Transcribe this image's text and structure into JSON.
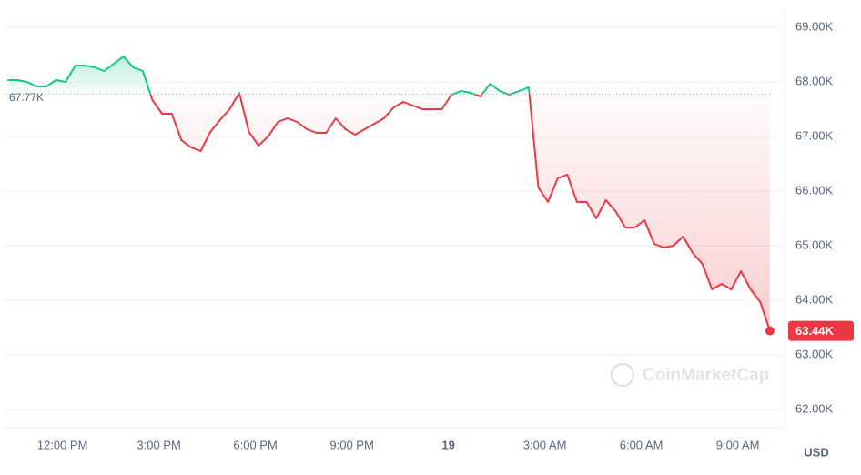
{
  "chart_data": {
    "type": "line",
    "x": [
      10.3,
      10.6,
      10.9,
      11.2,
      11.5,
      11.8,
      12.1,
      12.4,
      12.7,
      13.0,
      13.3,
      13.6,
      13.9,
      14.2,
      14.5,
      14.8,
      15.1,
      15.4,
      15.7,
      16.0,
      16.3,
      16.6,
      16.9,
      17.2,
      17.5,
      17.8,
      18.1,
      18.4,
      18.7,
      19.0,
      19.3,
      19.6,
      19.9,
      20.2,
      20.5,
      20.8,
      21.1,
      21.4,
      21.7,
      22.0,
      22.3,
      22.6,
      22.9,
      23.2,
      23.5,
      23.8,
      24.1,
      24.4,
      24.7,
      25.0,
      25.3,
      25.6,
      25.9,
      26.2,
      26.5,
      26.8,
      27.1,
      27.4,
      27.7,
      28.0,
      28.3,
      28.6,
      28.9,
      29.2,
      29.5,
      29.8,
      30.1,
      30.4,
      30.7,
      31.0,
      31.3,
      31.6,
      31.9,
      32.2,
      32.5,
      32.8,
      33.1,
      33.4,
      33.7,
      34.0
    ],
    "values": [
      68033,
      68033,
      68000,
      67917,
      67917,
      68033,
      68000,
      68300,
      68300,
      68267,
      68200,
      68333,
      68467,
      68267,
      68200,
      67667,
      67417,
      67417,
      66933,
      66800,
      66733,
      67083,
      67300,
      67500,
      67800,
      67083,
      66833,
      67000,
      67267,
      67333,
      67267,
      67133,
      67067,
      67067,
      67333,
      67133,
      67033,
      67133,
      67233,
      67333,
      67533,
      67633,
      67567,
      67500,
      67500,
      67500,
      67767,
      67833,
      67800,
      67733,
      67967,
      67833,
      67767,
      67833,
      67900,
      66067,
      65800,
      66233,
      66300,
      65800,
      65800,
      65500,
      65833,
      65633,
      65333,
      65333,
      65467,
      65033,
      64967,
      65000,
      65167,
      64867,
      64667,
      64200,
      64300,
      64200,
      64533,
      64200,
      63967,
      63440
    ],
    "up_color": "#16c784",
    "down_color": "#ea3943",
    "baseline": {
      "value": 67770,
      "label": "67.77K"
    },
    "last_price_label": "63.44K",
    "xlim": [
      10.2,
      34.2
    ],
    "ylim": [
      61700,
      69350
    ],
    "xticks": [
      {
        "value": 12,
        "label": "12:00 PM"
      },
      {
        "value": 15,
        "label": "3:00 PM"
      },
      {
        "value": 18,
        "label": "6:00 PM"
      },
      {
        "value": 21,
        "label": "9:00 PM"
      },
      {
        "value": 24,
        "label": "19"
      },
      {
        "value": 27,
        "label": "3:00 AM"
      },
      {
        "value": 30,
        "label": "6:00 AM"
      },
      {
        "value": 33,
        "label": "9:00 AM"
      }
    ],
    "yticks": [
      {
        "value": 62000,
        "label": "62.00K"
      },
      {
        "value": 63000,
        "label": "63.00K"
      },
      {
        "value": 64000,
        "label": "64.00K"
      },
      {
        "value": 65000,
        "label": "65.00K"
      },
      {
        "value": 66000,
        "label": "66.00K"
      },
      {
        "value": 67000,
        "label": "67.00K"
      },
      {
        "value": 68000,
        "label": "68.00K"
      },
      {
        "value": 69000,
        "label": "69.00K"
      }
    ],
    "y_unit": "USD",
    "watermark": "CoinMarketCap",
    "grid": true
  }
}
